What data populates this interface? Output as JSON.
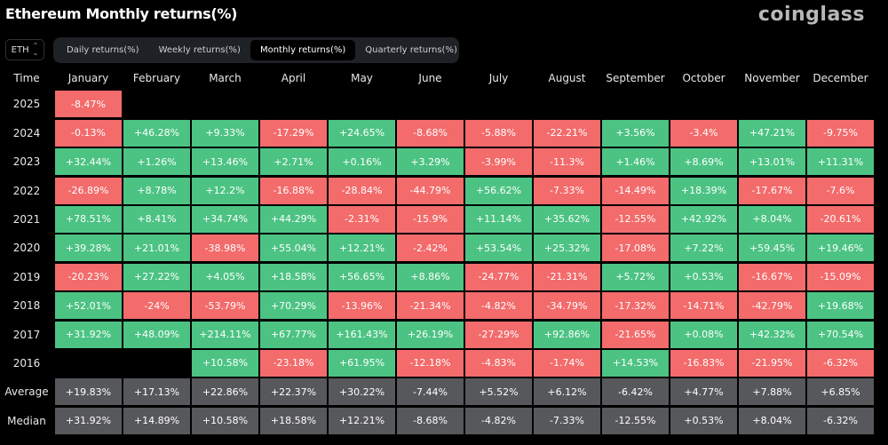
{
  "title": "Ethereum Monthly returns(%)",
  "logo": "coinglass",
  "asset_selector": {
    "value": "ETH",
    "icon": "chevron-up-down-icon"
  },
  "tabs": [
    {
      "label": "Daily returns(%)",
      "active": false
    },
    {
      "label": "Weekly returns(%)",
      "active": false
    },
    {
      "label": "Monthly returns(%)",
      "active": true
    },
    {
      "label": "Quarterly returns(%)",
      "active": false
    }
  ],
  "colors": {
    "positive": "#4cc383",
    "negative": "#f36b6b",
    "summary": "#57585b"
  },
  "table": {
    "headers": [
      "Time",
      "January",
      "February",
      "March",
      "April",
      "May",
      "June",
      "July",
      "August",
      "September",
      "October",
      "November",
      "December"
    ],
    "rows": [
      {
        "label": "2025",
        "values": [
          "-8.47%",
          null,
          null,
          null,
          null,
          null,
          null,
          null,
          null,
          null,
          null,
          null
        ]
      },
      {
        "label": "2024",
        "values": [
          "-0.13%",
          "+46.28%",
          "+9.33%",
          "-17.29%",
          "+24.65%",
          "-8.68%",
          "-5.88%",
          "-22.21%",
          "+3.56%",
          "-3.4%",
          "+47.21%",
          "-9.75%"
        ]
      },
      {
        "label": "2023",
        "values": [
          "+32.44%",
          "+1.26%",
          "+13.46%",
          "+2.71%",
          "+0.16%",
          "+3.29%",
          "-3.99%",
          "-11.3%",
          "+1.46%",
          "+8.69%",
          "+13.01%",
          "+11.31%"
        ]
      },
      {
        "label": "2022",
        "values": [
          "-26.89%",
          "+8.78%",
          "+12.2%",
          "-16.88%",
          "-28.84%",
          "-44.79%",
          "+56.62%",
          "-7.33%",
          "-14.49%",
          "+18.39%",
          "-17.67%",
          "-7.6%"
        ]
      },
      {
        "label": "2021",
        "values": [
          "+78.51%",
          "+8.41%",
          "+34.74%",
          "+44.29%",
          "-2.31%",
          "-15.9%",
          "+11.14%",
          "+35.62%",
          "-12.55%",
          "+42.92%",
          "+8.04%",
          "-20.61%"
        ]
      },
      {
        "label": "2020",
        "values": [
          "+39.28%",
          "+21.01%",
          "-38.98%",
          "+55.04%",
          "+12.21%",
          "-2.42%",
          "+53.54%",
          "+25.32%",
          "-17.08%",
          "+7.22%",
          "+59.45%",
          "+19.46%"
        ]
      },
      {
        "label": "2019",
        "values": [
          "-20.23%",
          "+27.22%",
          "+4.05%",
          "+18.58%",
          "+56.65%",
          "+8.86%",
          "-24.77%",
          "-21.31%",
          "+5.72%",
          "+0.53%",
          "-16.67%",
          "-15.09%"
        ]
      },
      {
        "label": "2018",
        "values": [
          "+52.01%",
          "-24%",
          "-53.79%",
          "+70.29%",
          "-13.96%",
          "-21.34%",
          "-4.82%",
          "-34.79%",
          "-17.32%",
          "-14.71%",
          "-42.79%",
          "+19.68%"
        ]
      },
      {
        "label": "2017",
        "values": [
          "+31.92%",
          "+48.09%",
          "+214.11%",
          "+67.77%",
          "+161.43%",
          "+26.19%",
          "-27.29%",
          "+92.86%",
          "-21.65%",
          "+0.08%",
          "+42.32%",
          "+70.54%"
        ]
      },
      {
        "label": "2016",
        "values": [
          null,
          null,
          "+10.58%",
          "-23.18%",
          "+61.95%",
          "-12.18%",
          "-4.83%",
          "-1.74%",
          "+14.53%",
          "-16.83%",
          "-21.95%",
          "-6.32%"
        ]
      }
    ],
    "summary": [
      {
        "label": "Average",
        "values": [
          "+19.83%",
          "+17.13%",
          "+22.86%",
          "+22.37%",
          "+30.22%",
          "-7.44%",
          "+5.52%",
          "+6.12%",
          "-6.42%",
          "+4.77%",
          "+7.88%",
          "+6.85%"
        ]
      },
      {
        "label": "Median",
        "values": [
          "+31.92%",
          "+14.89%",
          "+10.58%",
          "+18.58%",
          "+12.21%",
          "-8.68%",
          "-4.82%",
          "-7.33%",
          "-12.55%",
          "+0.53%",
          "+8.04%",
          "-6.32%"
        ]
      }
    ]
  }
}
